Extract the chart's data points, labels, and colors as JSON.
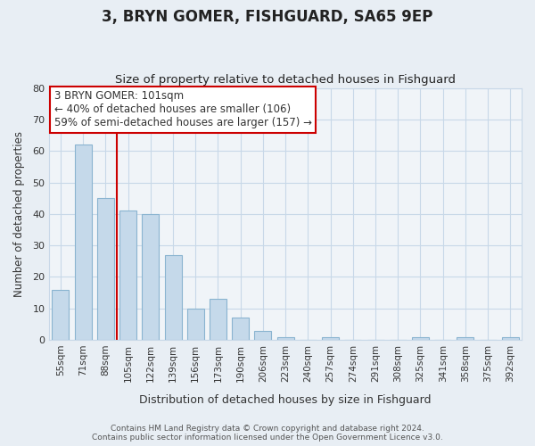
{
  "title": "3, BRYN GOMER, FISHGUARD, SA65 9EP",
  "subtitle": "Size of property relative to detached houses in Fishguard",
  "xlabel": "Distribution of detached houses by size in Fishguard",
  "ylabel": "Number of detached properties",
  "bins": [
    "55sqm",
    "71sqm",
    "88sqm",
    "105sqm",
    "122sqm",
    "139sqm",
    "156sqm",
    "173sqm",
    "190sqm",
    "206sqm",
    "223sqm",
    "240sqm",
    "257sqm",
    "274sqm",
    "291sqm",
    "308sqm",
    "325sqm",
    "341sqm",
    "358sqm",
    "375sqm",
    "392sqm"
  ],
  "values": [
    16,
    62,
    45,
    41,
    40,
    27,
    10,
    13,
    7,
    3,
    1,
    0,
    1,
    0,
    0,
    0,
    1,
    0,
    1,
    0,
    1
  ],
  "bar_color": "#c5d9ea",
  "bar_edge_color": "#8ab4d0",
  "vline_color": "#cc0000",
  "vline_x": 2.5,
  "annotation_text": "3 BRYN GOMER: 101sqm\n← 40% of detached houses are smaller (106)\n59% of semi-detached houses are larger (157) →",
  "annotation_box_color": "#ffffff",
  "annotation_box_edge_color": "#cc0000",
  "ylim": [
    0,
    80
  ],
  "yticks": [
    0,
    10,
    20,
    30,
    40,
    50,
    60,
    70,
    80
  ],
  "footer_line1": "Contains HM Land Registry data © Crown copyright and database right 2024.",
  "footer_line2": "Contains public sector information licensed under the Open Government Licence v3.0.",
  "fig_background_color": "#e8eef4",
  "plot_background_color": "#f0f4f8",
  "grid_color": "#c8d8e8",
  "title_color": "#222222",
  "label_color": "#333333",
  "tick_color": "#333333"
}
